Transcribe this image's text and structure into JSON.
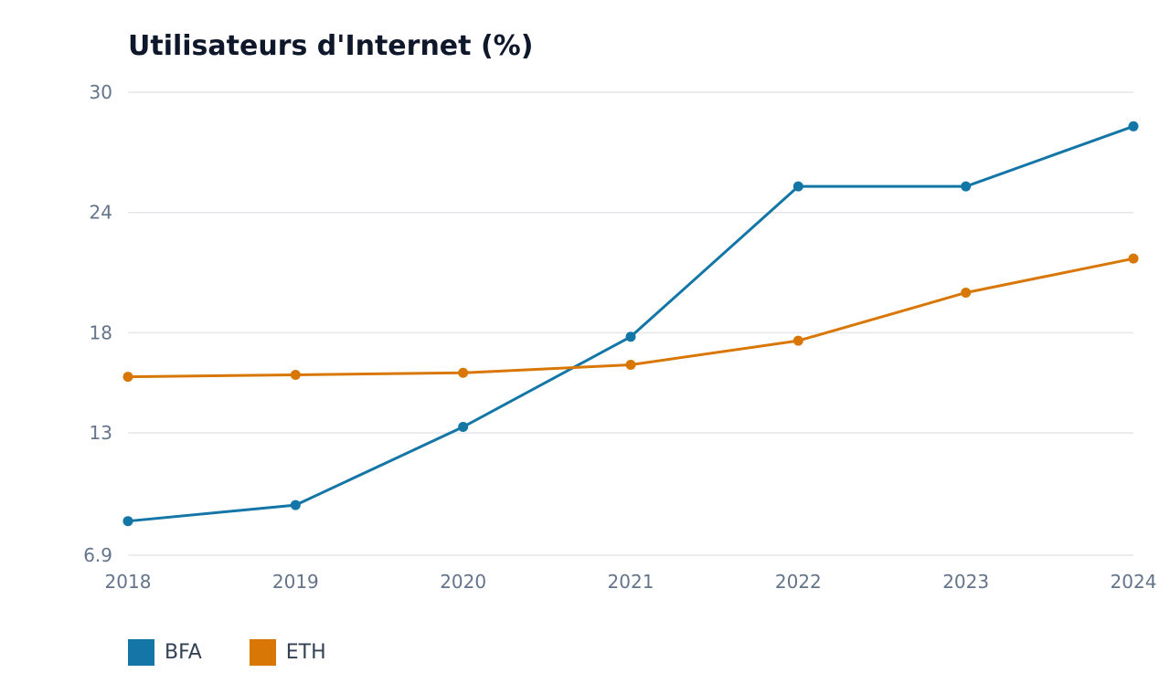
{
  "chart_data": {
    "type": "line",
    "title": "Utilisateurs d'Internet (%)",
    "xlabel": "",
    "ylabel": "",
    "x": [
      "2018",
      "2019",
      "2020",
      "2021",
      "2022",
      "2023",
      "2024"
    ],
    "y_ticks": [
      "30",
      "24",
      "18",
      "13",
      "6.9"
    ],
    "y_tick_values": [
      30,
      24,
      18,
      13,
      6.9
    ],
    "ylim": [
      6.9,
      30
    ],
    "grid": true,
    "legend_position": "bottom-left",
    "series": [
      {
        "name": "BFA",
        "color": "#1376a6",
        "values": [
          8.6,
          9.4,
          13.3,
          17.8,
          25.3,
          25.3,
          28.3
        ]
      },
      {
        "name": "ETH",
        "color": "#d97706",
        "values": [
          15.8,
          15.9,
          16.0,
          16.4,
          17.6,
          20.0,
          21.7
        ]
      }
    ]
  }
}
